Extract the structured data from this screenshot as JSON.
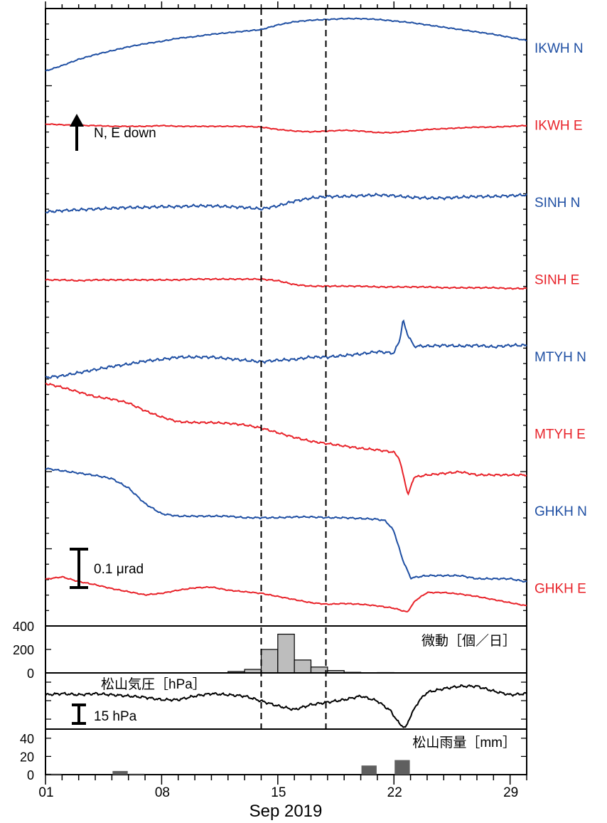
{
  "colors": {
    "n_component": "#1f4fa3",
    "e_component": "#e8232a",
    "axis": "#000000",
    "bar_tremor": "#bdbdbd",
    "bar_rain": "#5f5f5f"
  },
  "annotations": {
    "tilt_arrow_label": "N, E down",
    "tilt_scale_label": "0.1 μrad",
    "pressure_scale_label": "15 hPa"
  },
  "x_axis": {
    "label": "Sep 2019",
    "ticks": [
      "01",
      "08",
      "15",
      "22",
      "29"
    ],
    "range_days": [
      1,
      30
    ]
  },
  "chart_data": [
    {
      "type": "line",
      "title": "",
      "xlabel": "Sep 2019",
      "x_range": [
        1,
        30
      ],
      "event_markers_days": [
        14.0,
        17.9
      ],
      "series": [
        {
          "name": "IKWH N",
          "color": "#1f4fa3",
          "x": [
            1,
            2,
            3,
            4,
            5,
            6,
            7,
            8,
            9,
            10,
            11,
            12,
            13,
            14,
            15,
            16,
            17,
            18,
            19,
            20,
            21,
            22,
            23,
            24,
            25,
            26,
            27,
            28,
            29,
            30
          ],
          "y": [
            -0.29,
            -0.22,
            -0.14,
            -0.08,
            -0.03,
            0.02,
            0.06,
            0.09,
            0.13,
            0.15,
            0.18,
            0.2,
            0.22,
            0.24,
            0.3,
            0.34,
            0.36,
            0.37,
            0.38,
            0.38,
            0.37,
            0.35,
            0.33,
            0.3,
            0.27,
            0.24,
            0.21,
            0.18,
            0.14,
            0.1
          ],
          "noise": 0.008
        },
        {
          "name": "IKWH E",
          "color": "#e8232a",
          "x": [
            1,
            2,
            3,
            4,
            5,
            6,
            7,
            8,
            9,
            10,
            11,
            12,
            13,
            14,
            15,
            16,
            17,
            18,
            19,
            20,
            21,
            22,
            23,
            24,
            25,
            26,
            27,
            28,
            29,
            30
          ],
          "y": [
            0.02,
            0.01,
            0.0,
            0.0,
            -0.01,
            -0.01,
            -0.01,
            0.0,
            -0.01,
            -0.01,
            -0.01,
            -0.01,
            -0.01,
            -0.02,
            -0.05,
            -0.07,
            -0.08,
            -0.07,
            -0.06,
            -0.07,
            -0.09,
            -0.09,
            -0.07,
            -0.05,
            -0.04,
            -0.03,
            -0.02,
            -0.02,
            -0.01,
            0.0
          ],
          "noise": 0.007
        },
        {
          "name": "SINH N",
          "color": "#1f4fa3",
          "x": [
            1,
            2,
            3,
            4,
            5,
            6,
            7,
            8,
            9,
            10,
            11,
            12,
            13,
            14,
            15,
            16,
            17,
            18,
            19,
            20,
            21,
            22,
            23,
            24,
            25,
            26,
            27,
            28,
            29,
            30
          ],
          "y": [
            -0.12,
            -0.1,
            -0.09,
            -0.08,
            -0.07,
            -0.06,
            -0.06,
            -0.05,
            -0.05,
            -0.04,
            -0.04,
            -0.05,
            -0.06,
            -0.08,
            -0.04,
            0.02,
            0.06,
            0.08,
            0.08,
            0.09,
            0.1,
            0.09,
            0.07,
            0.06,
            0.06,
            0.07,
            0.08,
            0.08,
            0.09,
            0.1
          ],
          "noise": 0.02
        },
        {
          "name": "SINH E",
          "color": "#e8232a",
          "x": [
            1,
            2,
            3,
            4,
            5,
            6,
            7,
            8,
            9,
            10,
            11,
            12,
            13,
            14,
            15,
            16,
            17,
            18,
            19,
            20,
            21,
            22,
            23,
            24,
            25,
            26,
            27,
            28,
            29,
            30
          ],
          "y": [
            0.0,
            0.0,
            -0.01,
            0.0,
            0.0,
            0.0,
            0.0,
            0.0,
            0.0,
            0.01,
            0.01,
            0.01,
            0.01,
            0.01,
            -0.01,
            -0.06,
            -0.08,
            -0.08,
            -0.08,
            -0.08,
            -0.09,
            -0.09,
            -0.09,
            -0.09,
            -0.1,
            -0.1,
            -0.1,
            -0.1,
            -0.11,
            -0.11
          ],
          "noise": 0.01
        },
        {
          "name": "MTYH N",
          "color": "#1f4fa3",
          "x": [
            1,
            2,
            3,
            4,
            5,
            6,
            7,
            8,
            9,
            10,
            11,
            12,
            13,
            14,
            15,
            16,
            17,
            18,
            19,
            20,
            21,
            22,
            22.35,
            22.55,
            22.8,
            23.2,
            24,
            25,
            26,
            27,
            28,
            29,
            30
          ],
          "y": [
            -0.26,
            -0.24,
            -0.2,
            -0.16,
            -0.12,
            -0.09,
            -0.05,
            -0.03,
            0.0,
            0.0,
            0.0,
            -0.02,
            -0.04,
            -0.06,
            -0.04,
            -0.03,
            0.0,
            0.0,
            0.02,
            0.04,
            0.07,
            0.05,
            0.22,
            0.47,
            0.3,
            0.14,
            0.14,
            0.15,
            0.14,
            0.15,
            0.13,
            0.15,
            0.15
          ],
          "noise": 0.02
        },
        {
          "name": "MTYH E",
          "color": "#e8232a",
          "x": [
            1,
            2,
            3,
            4,
            5,
            6,
            7,
            8,
            9,
            10,
            11,
            12,
            13,
            14,
            15,
            16,
            17,
            18,
            19,
            20,
            21,
            22,
            22.3,
            22.6,
            22.85,
            23.2,
            24,
            25,
            26,
            27,
            28,
            29,
            30
          ],
          "y": [
            0.65,
            0.6,
            0.54,
            0.48,
            0.45,
            0.4,
            0.3,
            0.22,
            0.16,
            0.15,
            0.15,
            0.14,
            0.12,
            0.08,
            0.02,
            -0.04,
            -0.09,
            -0.12,
            -0.15,
            -0.18,
            -0.2,
            -0.23,
            -0.3,
            -0.55,
            -0.78,
            -0.55,
            -0.52,
            -0.5,
            -0.48,
            -0.52,
            -0.52,
            -0.52,
            -0.52
          ],
          "noise": 0.015
        },
        {
          "name": "GHKH N",
          "color": "#1f4fa3",
          "x": [
            1,
            2,
            3,
            4,
            5,
            6,
            7,
            8,
            9,
            10,
            11,
            12,
            13,
            14,
            15,
            16,
            17,
            18,
            19,
            20,
            21,
            21.5,
            22,
            22.5,
            23,
            24,
            25,
            26,
            27,
            28,
            29,
            30
          ],
          "y": [
            0.55,
            0.52,
            0.49,
            0.46,
            0.42,
            0.3,
            0.1,
            -0.03,
            -0.06,
            -0.06,
            -0.06,
            -0.06,
            -0.08,
            -0.08,
            -0.08,
            -0.07,
            -0.07,
            -0.08,
            -0.08,
            -0.09,
            -0.1,
            -0.12,
            -0.25,
            -0.6,
            -0.85,
            -0.82,
            -0.82,
            -0.82,
            -0.86,
            -0.86,
            -0.86,
            -0.9
          ],
          "noise": 0.012
        },
        {
          "name": "GHKH E",
          "color": "#e8232a",
          "x": [
            1,
            2,
            3,
            4,
            5,
            6,
            7,
            8,
            9,
            10,
            11,
            12,
            13,
            14,
            15,
            16,
            17,
            18,
            19,
            20,
            21,
            22,
            22.8,
            23.3,
            24,
            25,
            26,
            27,
            28,
            29,
            30
          ],
          "y": [
            0.12,
            0.15,
            0.09,
            0.05,
            0.0,
            -0.04,
            -0.08,
            -0.06,
            -0.02,
            0.01,
            0.02,
            -0.02,
            -0.04,
            -0.06,
            -0.1,
            -0.14,
            -0.18,
            -0.2,
            -0.19,
            -0.2,
            -0.22,
            -0.25,
            -0.3,
            -0.15,
            -0.05,
            -0.05,
            -0.07,
            -0.1,
            -0.14,
            -0.18,
            -0.22
          ],
          "noise": 0.008
        }
      ]
    },
    {
      "type": "bar",
      "title": "微動［個／日］",
      "ylim": [
        0,
        400
      ],
      "yticks": [
        0,
        200,
        400
      ],
      "categories": [
        1,
        2,
        3,
        4,
        5,
        6,
        7,
        8,
        9,
        10,
        11,
        12,
        13,
        14,
        15,
        16,
        17,
        18,
        19,
        20,
        21,
        22,
        23,
        24,
        25,
        26,
        27,
        28,
        29
      ],
      "values": [
        0,
        0,
        0,
        0,
        0,
        0,
        0,
        0,
        0,
        0,
        0,
        12,
        30,
        200,
        330,
        110,
        50,
        20,
        5,
        0,
        3,
        0,
        0,
        0,
        0,
        0,
        0,
        0,
        0
      ]
    },
    {
      "type": "line",
      "title": "松山気圧［hPa］",
      "x": [
        1,
        2,
        3,
        4,
        5,
        6,
        7,
        8,
        9,
        10,
        11,
        12,
        13,
        14,
        15,
        16,
        17,
        18,
        19,
        20,
        21,
        21.8,
        22.3,
        22.7,
        23,
        23.5,
        24,
        25,
        26,
        27,
        28,
        29,
        30
      ],
      "y": [
        3,
        4,
        3,
        4,
        3,
        2,
        1,
        -1,
        -1,
        2,
        4,
        3,
        2,
        -2,
        -6,
        -9,
        -5,
        -3,
        -1,
        2,
        -2,
        -10,
        -20,
        -24,
        -14,
        -2,
        5,
        8,
        10,
        10,
        6,
        3,
        4
      ],
      "noise": 1.2
    },
    {
      "type": "bar",
      "title": "松山雨量［mm］",
      "ylim": [
        0,
        50
      ],
      "yticks": [
        0,
        20,
        40
      ],
      "categories": [
        1,
        2,
        3,
        4,
        5,
        6,
        7,
        8,
        9,
        10,
        11,
        12,
        13,
        14,
        15,
        16,
        17,
        18,
        19,
        20,
        21,
        22,
        23,
        24,
        25,
        26,
        27,
        28,
        29
      ],
      "values": [
        1,
        0,
        0,
        0,
        4,
        1,
        0,
        0,
        0,
        0,
        0,
        0,
        0,
        0,
        0,
        0,
        0,
        0,
        0,
        10,
        0,
        16,
        0,
        0,
        0,
        0,
        0,
        0,
        0
      ]
    }
  ]
}
